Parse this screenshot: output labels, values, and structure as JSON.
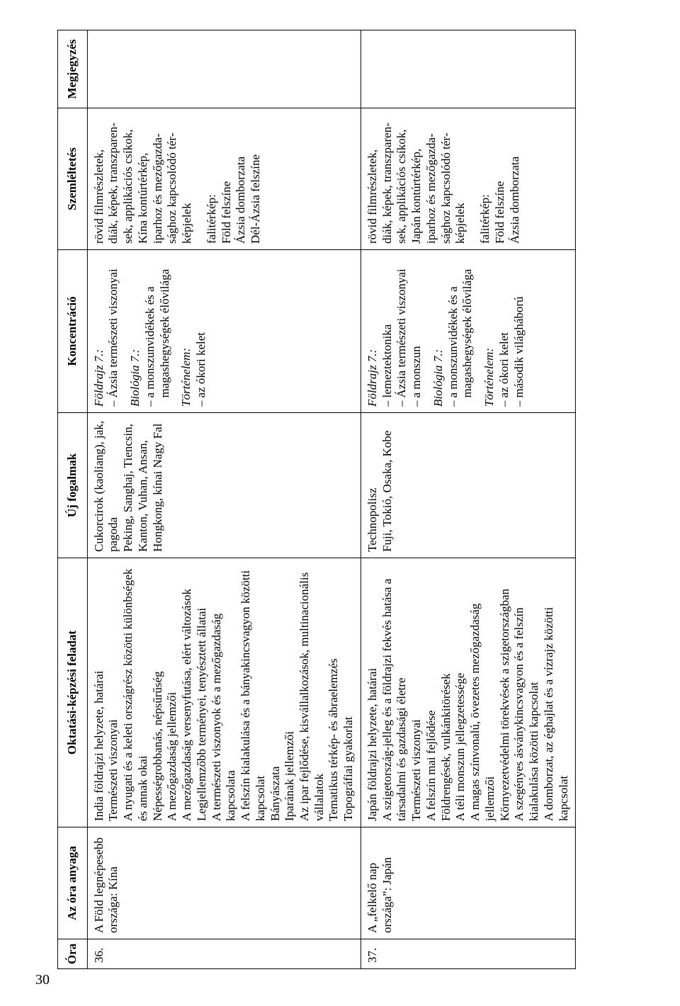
{
  "page_number": "30",
  "table": {
    "headers": {
      "ora": "Óra",
      "anyaga": "Az óra anyaga",
      "feladat": "Oktatási-képzési feladat",
      "fogalmak": "Új fogalmak",
      "koncentracio": "Koncentráció",
      "szemleltetes": "Szemléltetés",
      "megjegyzes": "Megjegyzés"
    },
    "rows": [
      {
        "ora": "36.",
        "anyaga": "A Föld legné­pesebb orszá­ga: Kína",
        "feladat": [
          "India földrajzi helyzete, határai",
          "Természeti viszonyai",
          "A nyugati és a keleti országrész közöt­ti különbségek és annak okai",
          "Népességrobbanás, népsűrűség",
          "A mezőgazdaság jellemzői",
          "A mezőgazdaság versenyfutása, elért változások",
          "Legjellemzőbb terményei, tenyésztett állatai",
          "A természeti viszonyok és a mezőgaz­daság kapcsolata",
          "A felszín kialakulása és a bányakincs­vagyon közötti kapcsolat",
          "Bányászata",
          "Iparának jellemzői",
          "Az ipar fejlődése, kisvállalkozások, multinacionális vállalatok",
          "Tematikus térkép- és ábraelemzés",
          "Topográfiai gyakorlat"
        ],
        "fogalmak": "Cukorcirok (kaoliang), jak, pagoda\nPeking, Sanghaj, Tiencsin, Kanton, Vuhan, Ansan, Hongkong, kínai Nagy Fal",
        "koncentracio": [
          {
            "subject": "Földrajz 7.:",
            "items": [
              "Ázsia természeti viszonyai"
            ]
          },
          {
            "subject": "Biológia 7.:",
            "items": [
              "a monszunvidékek és a magashegységek élővilága"
            ]
          },
          {
            "subject": "Történelem:",
            "items": [
              "az ókori kelet"
            ]
          }
        ],
        "szemleltetes_top": "rövid filmrészletek,\ndiák, képek, transzparen­sek, applikációs csíkok, Kína kontúrtérkép,\niparhoz és mezőgazda­sághoz kapcsolódó tér­képjelek",
        "szemleltetes_bottom": "falitérkép:\nFöld felszíne\nÁzsia domborzata\nDél-Ázsia felszíne",
        "megjegyzes": ""
      },
      {
        "ora": "37.",
        "anyaga": "A „felkelő nap országa”: Japán",
        "feladat": [
          "Japán földrajzi helyzete, határai",
          "A szigetország-jelleg és a földrajzi fek­vés hatása a társadalmi és gazdasági életre",
          "Természeti viszonyai",
          "A felszín mai fejlődése",
          "Földrengések, vulkánkitörések",
          "A téli monszun jellegzetessége",
          "A magas színvonalú, övezetes mező­gazdaság jellemzői",
          "Környezetvédelmi törekvések a sziget­országban",
          "A szegényes ásványkincsvagyon és a felszín kialakulása közötti kapcsolat",
          "A domborzat, az éghajlat és a vízrajz közötti kapcsolat"
        ],
        "fogalmak": "Technopolisz\nFuji, Tokió, Osaka, Kobe",
        "koncentracio": [
          {
            "subject": "Földrajz 7.:",
            "items": [
              "lemeztektonika",
              "Ázsia természeti viszonyai",
              "a monszun"
            ]
          },
          {
            "subject": "Biológia 7.:",
            "items": [
              "a monszunvidékek és a magashegységek élővilága"
            ]
          },
          {
            "subject": "Történelem:",
            "items": [
              "az ókori kelet",
              "második világháború"
            ]
          }
        ],
        "szemleltetes_top": "rövid filmrészletek,\ndiák, képek, transzparen­sek, applikációs csíkok, Japán kontúrtérkép,\niparhoz és mezőgazda­sághoz kapcsolódó tér­képjelek",
        "szemleltetes_bottom": "falitérkép:\nFöld felszíne\nÁzsia domborzata",
        "megjegyzes": ""
      }
    ]
  }
}
